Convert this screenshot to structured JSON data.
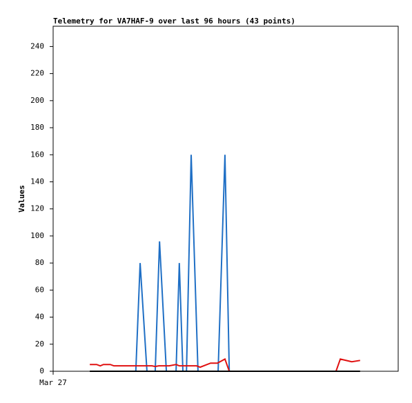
{
  "chart_data": {
    "type": "line",
    "title": "Telemetry for VA7HAF-9 over last 96 hours (43 points)",
    "ylabel": "Values",
    "xlim": [
      0,
      96
    ],
    "xticks": [
      {
        "value": 0,
        "label": "Mar 27"
      }
    ],
    "ylim": [
      0,
      255
    ],
    "yticks": [
      0,
      20,
      40,
      60,
      80,
      100,
      120,
      140,
      160,
      180,
      200,
      220,
      240
    ],
    "series": [
      {
        "color": "#1f6fc5",
        "x": [
          23.0,
          24.2,
          26.1,
          28.4,
          29.6,
          31.5,
          34.2,
          35.1,
          36.1,
          37.1,
          38.4,
          40.3,
          45.9,
          47.8,
          49.0
        ],
        "values": [
          0,
          80,
          0,
          0,
          96,
          0,
          0,
          80,
          0,
          0,
          160,
          0,
          0,
          160,
          0
        ]
      },
      {
        "color": "#e01010",
        "x": [
          10.2,
          12.1,
          13.1,
          14.0,
          15.9,
          16.9,
          23.6,
          27.5,
          28.4,
          29.4,
          32.3,
          34.2,
          35.1,
          39.9,
          40.9,
          43.8,
          45.7,
          47.8,
          49.0,
          78.7,
          79.9,
          83.1,
          85.4
        ],
        "values": [
          5,
          5,
          4,
          5,
          5,
          4,
          4,
          4,
          3.5,
          4,
          4,
          5,
          4,
          4,
          3,
          6,
          6,
          9,
          0,
          0,
          9,
          7,
          8
        ]
      },
      {
        "color": "#000000",
        "x": [
          10.2,
          85.4
        ],
        "values": [
          0,
          0
        ]
      }
    ]
  }
}
